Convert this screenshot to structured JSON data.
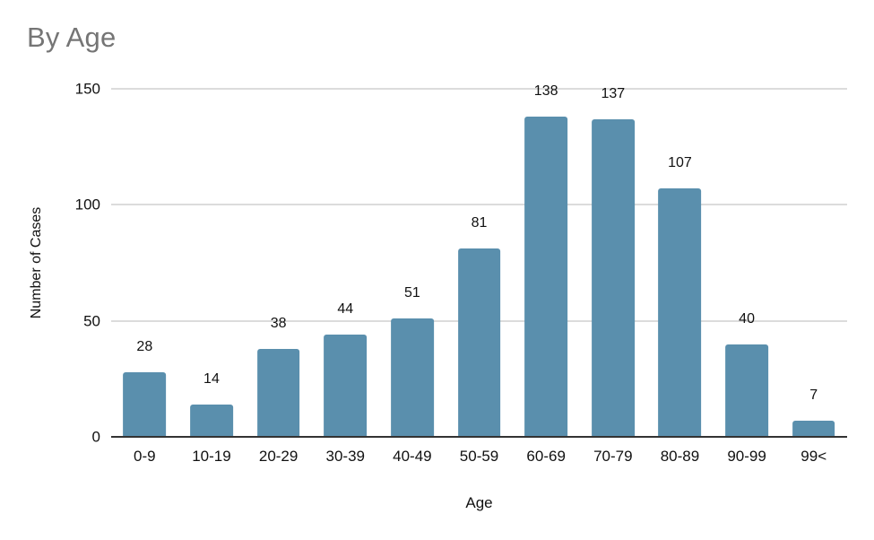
{
  "page": {
    "background": "#ffffff"
  },
  "chart_data": {
    "type": "bar",
    "title": "By Age",
    "categories": [
      "0-9",
      "10-19",
      "20-29",
      "30-39",
      "40-49",
      "50-59",
      "60-69",
      "70-79",
      "80-89",
      "90-99",
      "99<"
    ],
    "values": [
      28,
      14,
      38,
      44,
      51,
      81,
      138,
      137,
      107,
      40,
      7
    ],
    "xlabel": "Age",
    "ylabel": "Number of Cases",
    "ylim": [
      0,
      150
    ],
    "yticks": [
      0,
      50,
      100,
      150
    ],
    "grid": true,
    "legend": "none",
    "value_labels_visible": true,
    "colors": {
      "bar": "#5a8fad",
      "title": "#757575",
      "text": "#111111",
      "gridline": "#dcdcdc",
      "axis_line": "#333333",
      "background": "#ffffff"
    }
  }
}
